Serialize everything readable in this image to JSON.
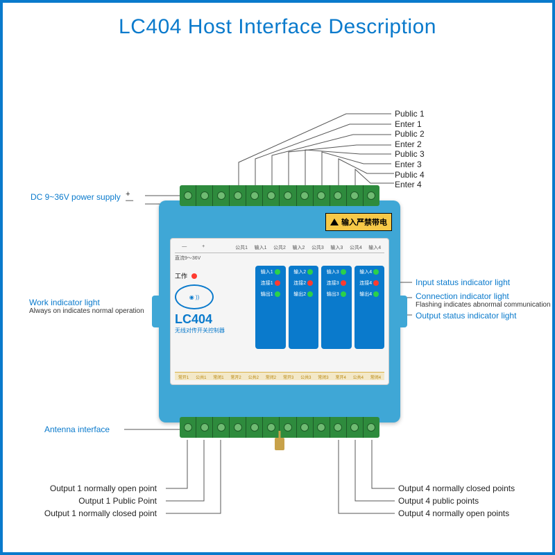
{
  "title": "LC404 Host Interface Description",
  "title_color": "#0a7acc",
  "border_color": "#0a7acc",
  "device": {
    "body_color": "#3fa7d6",
    "face_color": "#f5f5f5",
    "terminal_color": "#2e8b3d",
    "warning_bg": "#f7c948",
    "warning_text": "输入严禁带电",
    "model": "LC404",
    "model_sub": "无线对传开关控制器",
    "work_label": "工作",
    "voltage_label": "直流9～36V",
    "top_row_labels": [
      "—",
      "+",
      "",
      "公共1",
      "输入1",
      "公共2",
      "输入2",
      "公共3",
      "输入3",
      "公共4",
      "输入4"
    ],
    "led_columns": [
      {
        "in": "输入1",
        "conn": "连接1",
        "out": "输出1"
      },
      {
        "in": "输入2",
        "conn": "连接2",
        "out": "输出2"
      },
      {
        "in": "输入3",
        "conn": "连接3",
        "out": "输出3"
      },
      {
        "in": "输入4",
        "conn": "连接4",
        "out": "输出4"
      }
    ],
    "led_colors": {
      "in": "#2bd14a",
      "conn": "#ff3b30",
      "out": "#2bd14a",
      "work": "#ff3b30"
    },
    "bottom_row_labels": [
      "常开1",
      "公共1",
      "常闭1",
      "常开2",
      "公共2",
      "常闭2",
      "常开3",
      "公共3",
      "常闭3",
      "常开4",
      "公共4",
      "常闭4"
    ]
  },
  "callouts": {
    "top_right": [
      "Public 1",
      "Enter 1",
      "Public 2",
      "Enter 2",
      "Public 3",
      "Enter 3",
      "Public 4",
      "Enter 4"
    ],
    "power": {
      "blue": "DC 9~36V power supply",
      "symbol": "+\n—"
    },
    "work": {
      "blue": "Work indicator light",
      "sub": "Always on indicates normal operation"
    },
    "input_status": "Input status indicator light",
    "conn_status": {
      "blue": "Connection indicator light",
      "sub": "Flashing indicates abnormal communication"
    },
    "output_status": "Output status indicator light",
    "antenna": "Antenna interface",
    "bottom_left": [
      "Output 1 normally open point",
      "Output 1 Public Point",
      "Output 1 normally closed point"
    ],
    "bottom_right": [
      "Output 4 normally closed points",
      "Output 4 public points",
      "Output 4 normally open points"
    ]
  },
  "font": {
    "callout_size": 12
  }
}
